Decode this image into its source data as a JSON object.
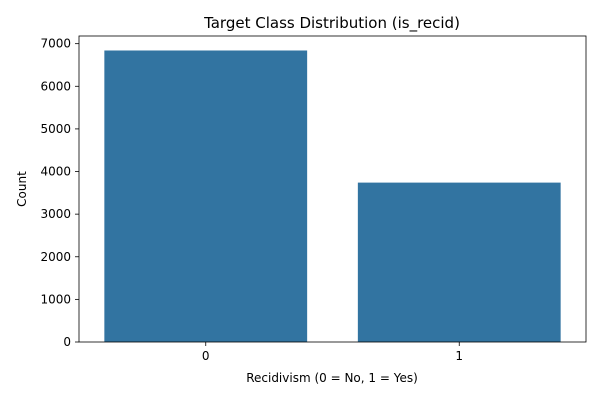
{
  "chart_data": {
    "type": "bar",
    "title": "Target Class Distribution (is_recid)",
    "xlabel": "Recidivism (0 = No, 1 = Yes)",
    "ylabel": "Count",
    "categories": [
      "0",
      "1"
    ],
    "values": [
      6840,
      3740
    ],
    "ylim": [
      0,
      7180
    ],
    "yticks": [
      0,
      1000,
      2000,
      3000,
      4000,
      5000,
      6000,
      7000
    ],
    "bar_color": "#3274a1",
    "grid": false,
    "legend": "none"
  }
}
